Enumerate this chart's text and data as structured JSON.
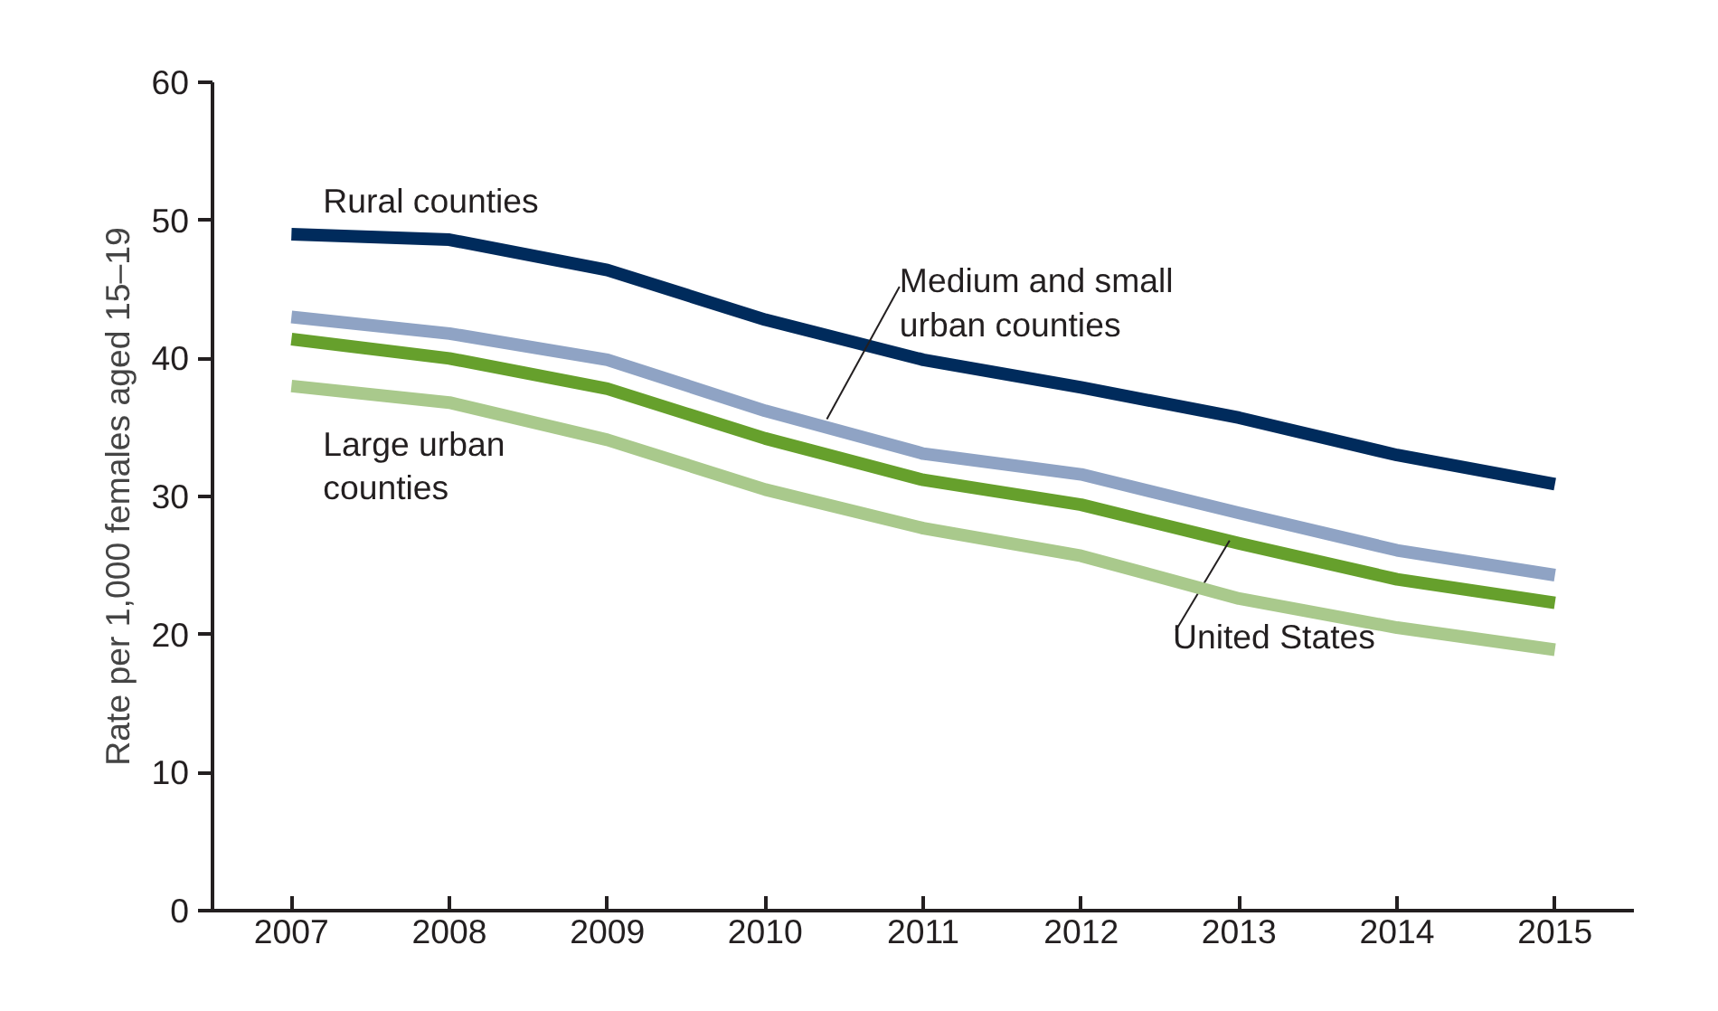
{
  "chart_data": {
    "type": "line",
    "ylabel": "Rate per 1,000 females aged 15–19",
    "x": [
      2007,
      2008,
      2009,
      2010,
      2011,
      2012,
      2013,
      2014,
      2015
    ],
    "xlim": [
      2006.5,
      2015.5
    ],
    "xticks": [
      2007,
      2008,
      2009,
      2010,
      2011,
      2012,
      2013,
      2014,
      2015
    ],
    "ylim": [
      0,
      60
    ],
    "yticks": [
      0,
      10,
      20,
      30,
      40,
      50,
      60
    ],
    "grid": false,
    "line_style": "solid",
    "marker": "none",
    "series": [
      {
        "name": "Rural counties",
        "color": "#002b5c",
        "values": [
          49.0,
          48.6,
          46.4,
          42.8,
          39.9,
          37.9,
          35.7,
          33.0,
          30.9
        ]
      },
      {
        "name": "Medium and small urban counties",
        "color": "#8fa3c4",
        "values": [
          43.0,
          41.8,
          39.9,
          36.2,
          33.1,
          31.6,
          28.8,
          26.1,
          24.3
        ]
      },
      {
        "name": "United States",
        "color": "#66a02c",
        "values": [
          41.4,
          40.0,
          37.8,
          34.2,
          31.2,
          29.4,
          26.6,
          24.0,
          22.3
        ]
      },
      {
        "name": "Large urban counties",
        "color": "#a9c98c",
        "values": [
          38.0,
          36.8,
          34.1,
          30.5,
          27.7,
          25.7,
          22.6,
          20.5,
          18.9
        ]
      }
    ]
  }
}
